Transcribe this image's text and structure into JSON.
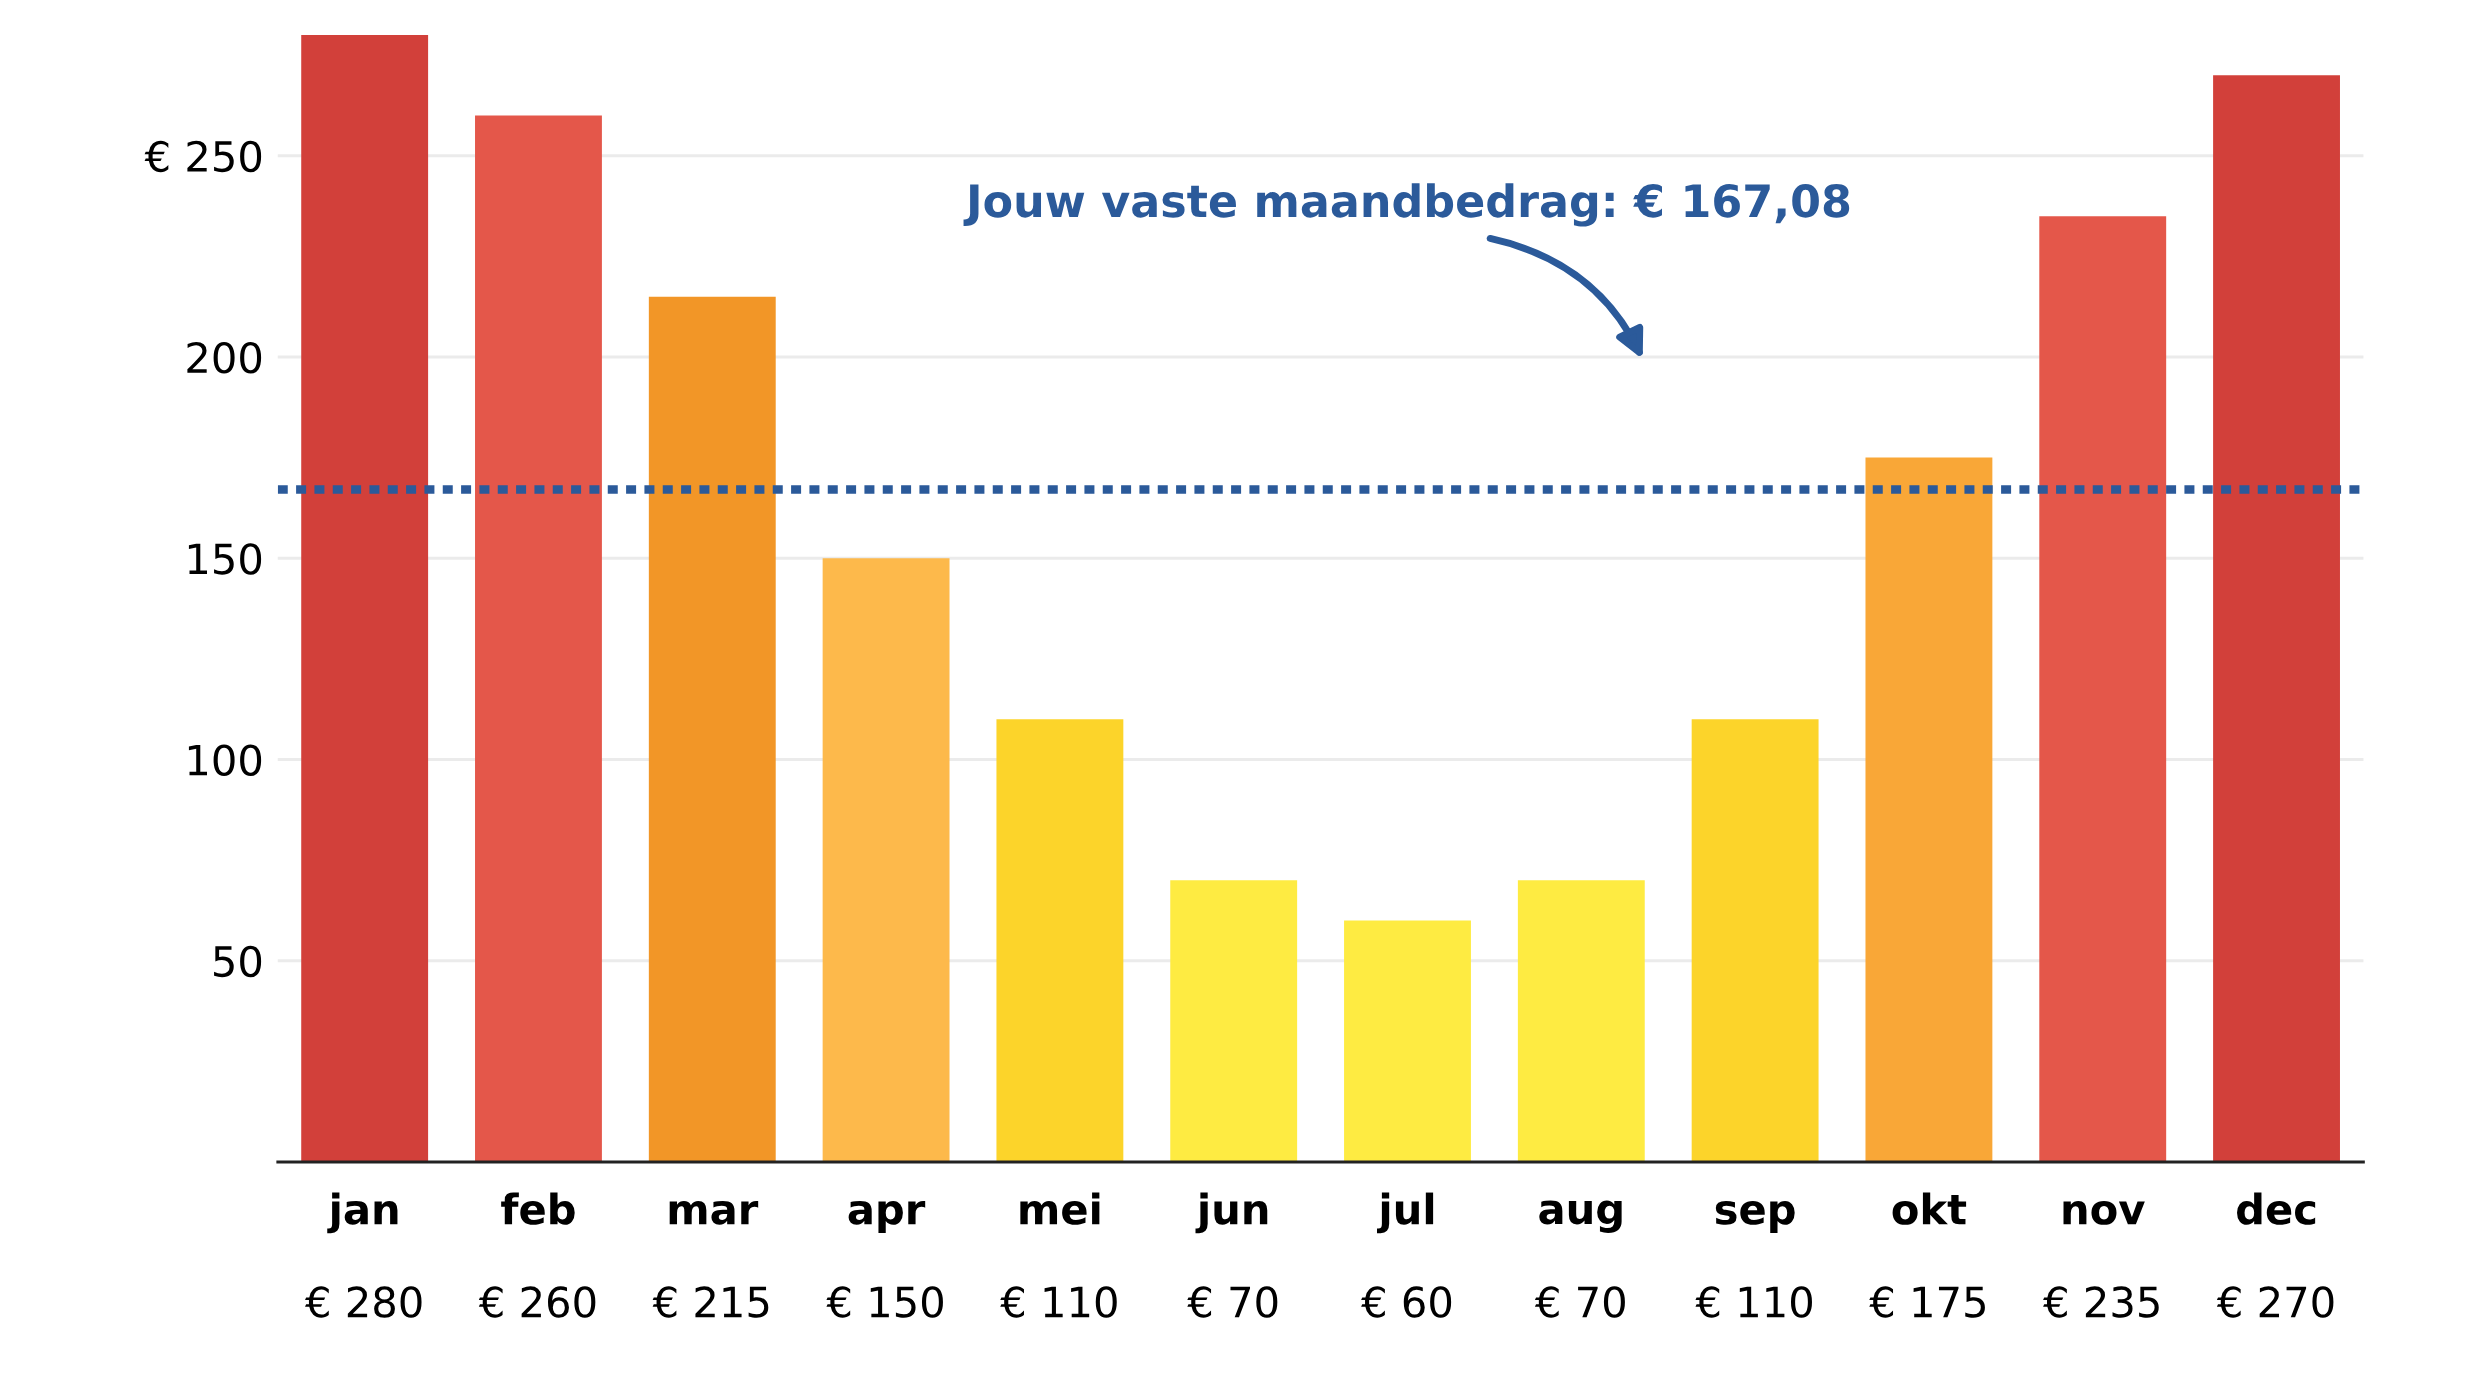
{
  "chart_data": {
    "type": "bar",
    "categories": [
      "jan",
      "feb",
      "mar",
      "apr",
      "mei",
      "jun",
      "jul",
      "aug",
      "sep",
      "okt",
      "nov",
      "dec"
    ],
    "values": [
      280,
      260,
      215,
      150,
      110,
      70,
      60,
      70,
      110,
      175,
      235,
      270
    ],
    "value_labels": [
      "€ 280",
      "€ 260",
      "€ 215",
      "€ 150",
      "€ 110",
      "€ 70",
      "€ 60",
      "€ 70",
      "€ 110",
      "€ 175",
      "€ 235",
      "€ 270"
    ],
    "colors": [
      "#d2403a",
      "#e4574a",
      "#f29627",
      "#fdb94b",
      "#fcd42a",
      "#feeb42",
      "#feeb42",
      "#feeb42",
      "#fcd42a",
      "#f9a737",
      "#e4574a",
      "#d2403a"
    ],
    "ylim": [
      0,
      280
    ],
    "yticks": [
      {
        "value": 50,
        "label": "50"
      },
      {
        "value": 100,
        "label": "100"
      },
      {
        "value": 150,
        "label": "150"
      },
      {
        "value": 200,
        "label": "200"
      },
      {
        "value": 250,
        "label": "€ 250"
      }
    ],
    "grid": "y",
    "ref_lines": [
      {
        "axis": "y",
        "value": 167.08,
        "label": "Jouw vaste maandbedrag: € 167,08",
        "color": "#2b5a9a",
        "line_style": "dotted"
      }
    ]
  }
}
